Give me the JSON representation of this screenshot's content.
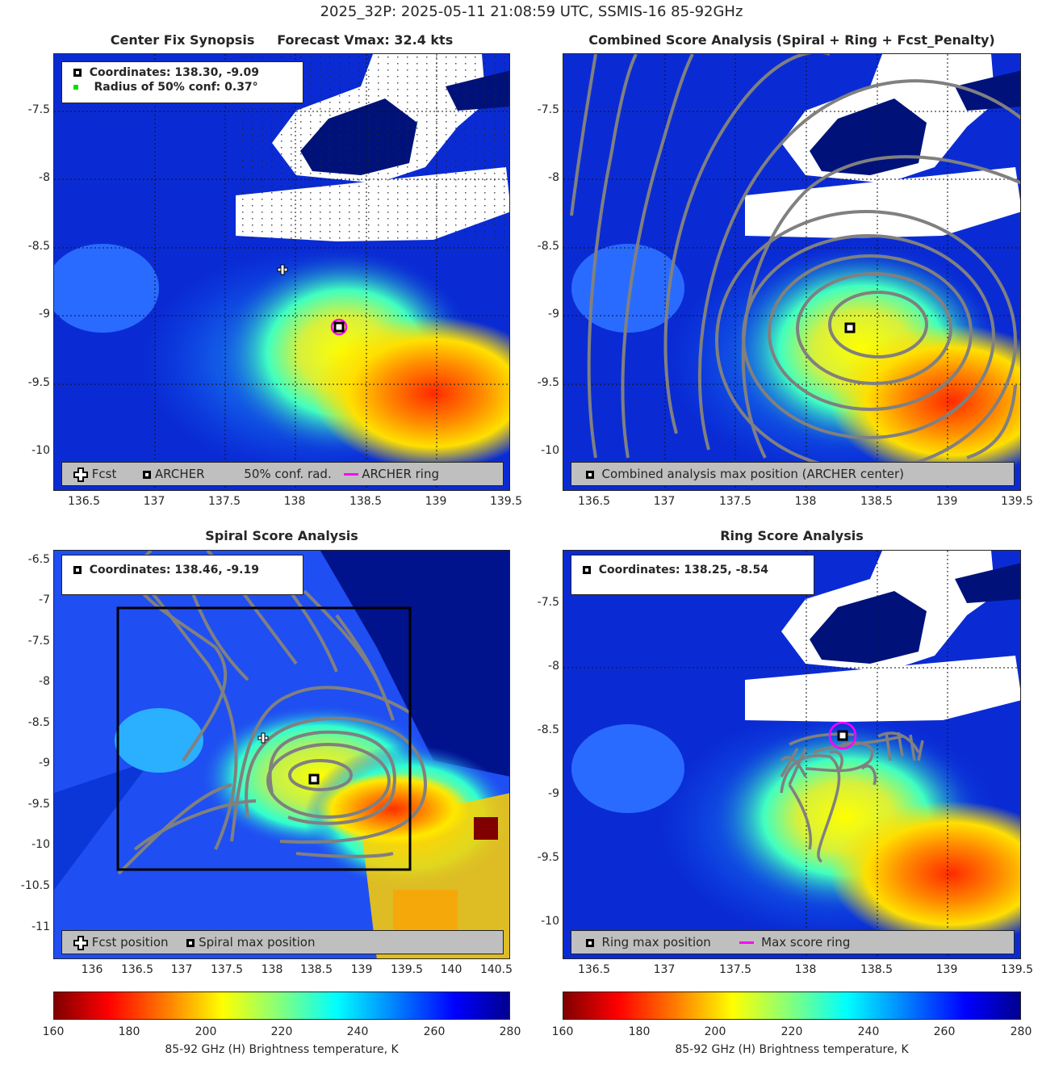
{
  "suptitle": "2025_32P: 2025-05-11 21:08:59 UTC, SSMIS-16 85-92GHz",
  "panels": {
    "synopsis": {
      "title": "Center Fix Synopsis     Forecast Vmax: 32.4 kts",
      "coords_text": "Coordinates: 138.30, -9.09",
      "radius_text": "Radius of 50% conf: 0.37°",
      "legend": {
        "fcst": "Fcst",
        "archer": "ARCHER",
        "conf": "50% conf. rad.",
        "ring": "ARCHER ring"
      },
      "yticks": [
        "-7.5",
        "-8",
        "-8.5",
        "-9",
        "-9.5",
        "-10"
      ],
      "xticks": [
        "136.5",
        "137",
        "137.5",
        "138",
        "138.5",
        "139",
        "139.5"
      ]
    },
    "combined": {
      "title": "Combined Score Analysis (Spiral + Ring + Fcst_Penalty)",
      "legend": {
        "max": "Combined analysis max position (ARCHER center)"
      },
      "yticks": [
        "-7.5",
        "-8",
        "-8.5",
        "-9",
        "-9.5",
        "-10"
      ],
      "xticks": [
        "136.5",
        "137",
        "137.5",
        "138",
        "138.5",
        "139",
        "139.5"
      ]
    },
    "spiral": {
      "title": "Spiral Score Analysis",
      "coords_text": "Coordinates: 138.46, -9.19",
      "legend": {
        "fcst": "Fcst position",
        "max": "Spiral max position"
      },
      "yticks": [
        "-6.5",
        "-7",
        "-7.5",
        "-8",
        "-8.5",
        "-9",
        "-9.5",
        "-10",
        "-10.5",
        "-11"
      ],
      "xticks": [
        "136",
        "136.5",
        "137",
        "137.5",
        "138",
        "138.5",
        "139",
        "139.5",
        "140",
        "140.5"
      ]
    },
    "ring": {
      "title": "Ring Score Analysis",
      "coords_text": "Coordinates: 138.25, -8.54",
      "legend": {
        "max": "Ring max position",
        "ring": "Max score ring"
      },
      "yticks": [
        "-7.5",
        "-8",
        "-8.5",
        "-9",
        "-9.5",
        "-10"
      ],
      "xticks": [
        "136.5",
        "137",
        "137.5",
        "138",
        "138.5",
        "139",
        "139.5"
      ]
    }
  },
  "colorbar": {
    "label": "85-92 GHz (H) Brightness temperature, K",
    "ticks": [
      "160",
      "180",
      "200",
      "220",
      "240",
      "260",
      "280"
    ]
  }
}
